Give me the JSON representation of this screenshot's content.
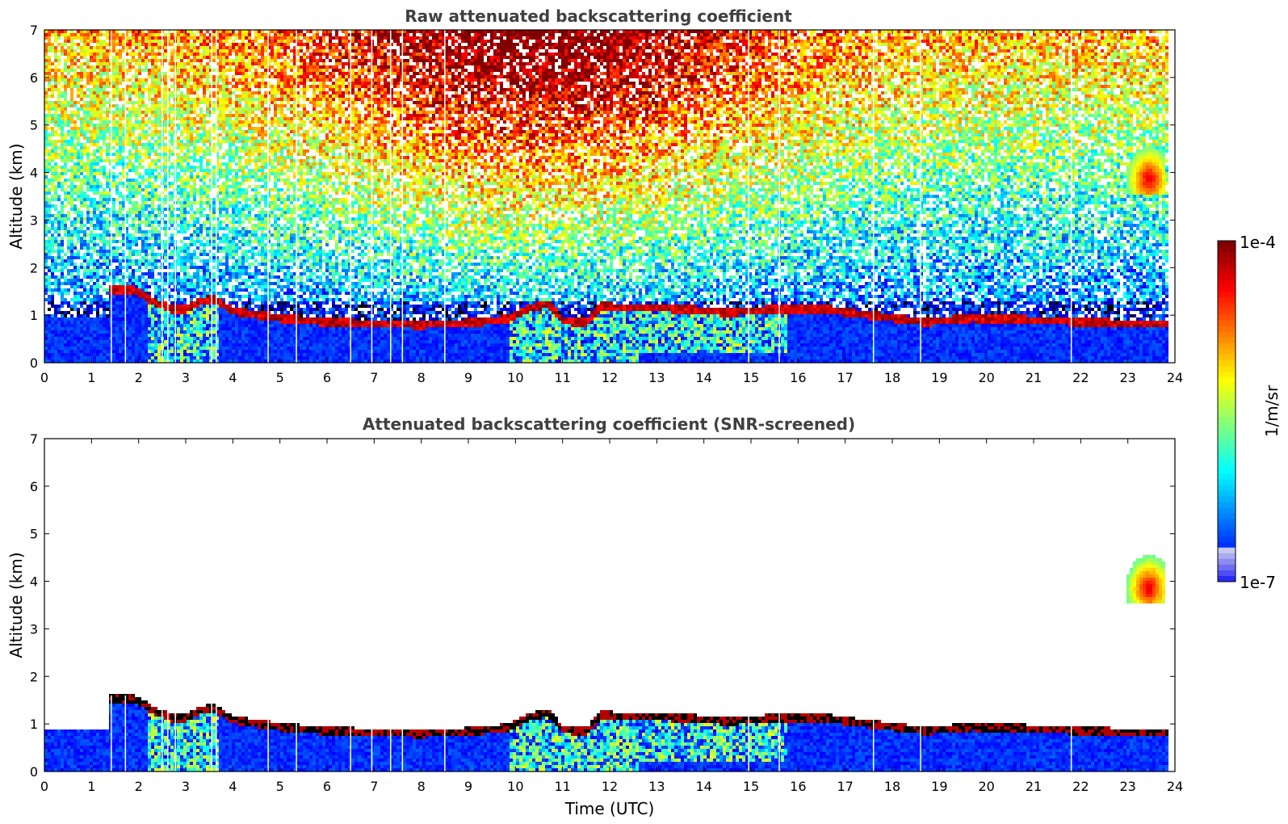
{
  "chart_data": [
    {
      "type": "heatmap",
      "title": "Raw attenuated backscattering coefficient",
      "xlabel": "",
      "ylabel": "Altitude (km)",
      "xlim": [
        0,
        24
      ],
      "ylim": [
        0,
        7
      ],
      "xticks": [
        0,
        1,
        2,
        3,
        4,
        5,
        6,
        7,
        8,
        9,
        10,
        11,
        12,
        13,
        14,
        15,
        16,
        17,
        18,
        19,
        20,
        21,
        22,
        23,
        24
      ],
      "yticks": [
        0,
        1,
        2,
        3,
        4,
        5,
        6,
        7
      ],
      "screened": false,
      "cloud_base_km": {
        "time": [
          1.4,
          1.8,
          2.0,
          2.3,
          2.7,
          3.0,
          3.3,
          3.6,
          4.0,
          5.0,
          6.0,
          7.0,
          8.0,
          9.0,
          9.8,
          10.3,
          10.7,
          11.0,
          11.5,
          11.8,
          12.5,
          13.5,
          14.5,
          15.5,
          16.5,
          17.2,
          18.0,
          18.7,
          19.7,
          20.5,
          21.5,
          22.5,
          23.3,
          23.8
        ],
        "altitude": [
          1.5,
          1.5,
          1.45,
          1.25,
          1.1,
          1.1,
          1.25,
          1.3,
          1.05,
          0.9,
          0.82,
          0.78,
          0.76,
          0.8,
          0.88,
          1.1,
          1.2,
          0.85,
          0.8,
          1.15,
          1.12,
          1.1,
          1.02,
          1.08,
          1.1,
          1.0,
          0.9,
          0.82,
          0.9,
          0.88,
          0.84,
          0.8,
          0.78,
          0.78
        ]
      },
      "elevated_layer": {
        "time_range": [
          22.8,
          23.8
        ],
        "altitude_range": [
          3.5,
          4.9
        ],
        "peak": [
          23.45,
          3.85
        ]
      }
    },
    {
      "type": "heatmap",
      "title": "Attenuated backscattering coefficient (SNR-screened)",
      "xlabel": "Time (UTC)",
      "ylabel": "Altitude (km)",
      "xlim": [
        0,
        24
      ],
      "ylim": [
        0,
        7
      ],
      "xticks": [
        0,
        1,
        2,
        3,
        4,
        5,
        6,
        7,
        8,
        9,
        10,
        11,
        12,
        13,
        14,
        15,
        16,
        17,
        18,
        19,
        20,
        21,
        22,
        23,
        24
      ],
      "yticks": [
        0,
        1,
        2,
        3,
        4,
        5,
        6,
        7
      ],
      "screened": true,
      "cloud_base_km": {
        "time": [
          1.4,
          1.8,
          2.0,
          2.3,
          2.7,
          3.0,
          3.3,
          3.6,
          4.0,
          5.0,
          6.0,
          7.0,
          8.0,
          9.0,
          9.8,
          10.3,
          10.7,
          11.0,
          11.5,
          11.8,
          12.5,
          13.5,
          14.5,
          15.5,
          16.5,
          17.2,
          18.0,
          18.7,
          19.7,
          20.5,
          21.5,
          22.5,
          23.3,
          23.8
        ],
        "altitude": [
          1.5,
          1.5,
          1.45,
          1.25,
          1.1,
          1.1,
          1.25,
          1.3,
          1.05,
          0.9,
          0.82,
          0.78,
          0.76,
          0.8,
          0.88,
          1.1,
          1.2,
          0.85,
          0.8,
          1.15,
          1.12,
          1.1,
          1.02,
          1.08,
          1.1,
          1.0,
          0.9,
          0.82,
          0.9,
          0.88,
          0.84,
          0.8,
          0.78,
          0.78
        ]
      },
      "elevated_layer": {
        "time_range": [
          22.8,
          23.8
        ],
        "altitude_range": [
          3.5,
          4.9
        ],
        "peak": [
          23.45,
          3.85
        ]
      }
    }
  ],
  "colorbar": {
    "label": "1/m/sr",
    "max_label": "1e-4",
    "min_label": "1e-7",
    "colormap": "jet"
  },
  "colors": {
    "high": "#7f0000",
    "mid": "#ffff00",
    "low": "#0000ff",
    "axis_title": "#404040"
  }
}
